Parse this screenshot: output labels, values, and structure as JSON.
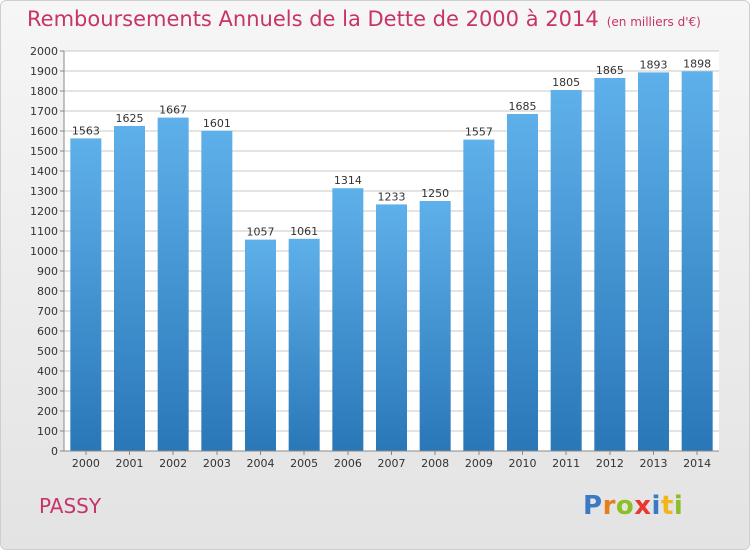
{
  "header": {
    "title": "Remboursements Annuels de la Dette de 2000 à 2014",
    "unit": "(en milliers d'€)"
  },
  "footer": {
    "place": "PASSY",
    "logo_letters": [
      "P",
      "r",
      "o",
      "x",
      "i",
      "t",
      "i"
    ]
  },
  "colors": {
    "title": "#c8336a",
    "bar_top": "#5eb0ea",
    "bar_bottom": "#2a77b8",
    "logo": [
      "#3a79c4",
      "#e87d1e",
      "#8cbf26",
      "#e8382f",
      "#3a79c4",
      "#f2b51d",
      "#8cbf26"
    ]
  },
  "chart_data": {
    "type": "bar",
    "categories": [
      "2000",
      "2001",
      "2002",
      "2003",
      "2004",
      "2005",
      "2006",
      "2007",
      "2008",
      "2009",
      "2010",
      "2011",
      "2012",
      "2013",
      "2014"
    ],
    "values": [
      1563,
      1625,
      1667,
      1601,
      1057,
      1061,
      1314,
      1233,
      1250,
      1557,
      1685,
      1805,
      1865,
      1893,
      1898
    ],
    "ylim": [
      0,
      2000
    ],
    "ytick_step": 100,
    "data_labels": true,
    "grid": true,
    "legend": "none"
  }
}
